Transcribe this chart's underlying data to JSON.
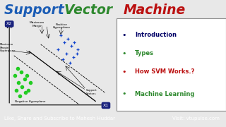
{
  "title_support": "Support ",
  "title_vector": "Vector ",
  "title_machine": "Machine",
  "title_color_support": "#1a5cb5",
  "title_color_vector": "#2d882d",
  "title_color_machine": "#bb1111",
  "bg_color": "#e8e8e8",
  "footer_bg": "#5c3d99",
  "footer_text_left": "Like, Share and Subscribe to Mahesh Huddar",
  "footer_text_right": "Visit: vtupulse.com",
  "footer_color": "#FFFFFF",
  "bullet_colors": [
    "#000066",
    "#2d882d",
    "#bb1111",
    "#2d882d"
  ],
  "bullet_texts": [
    "Introduction",
    "Types",
    "How SVM Works.?",
    "Machine Learning"
  ],
  "green_dot_color": "#22cc22",
  "blue_dot_color": "#1144cc",
  "axis_bg_color": "#1a237e",
  "label_x2": "X2",
  "label_x1": "X1",
  "margin_label": "Maximum\nMargin",
  "pos_hyper_label": "Positive\nHyperplane",
  "neg_hyper_label": "Negative Hyperplane",
  "mmh_label": "Maximum\nMargin\nHyperplane",
  "support_vectors_label": "Support\nVectors"
}
